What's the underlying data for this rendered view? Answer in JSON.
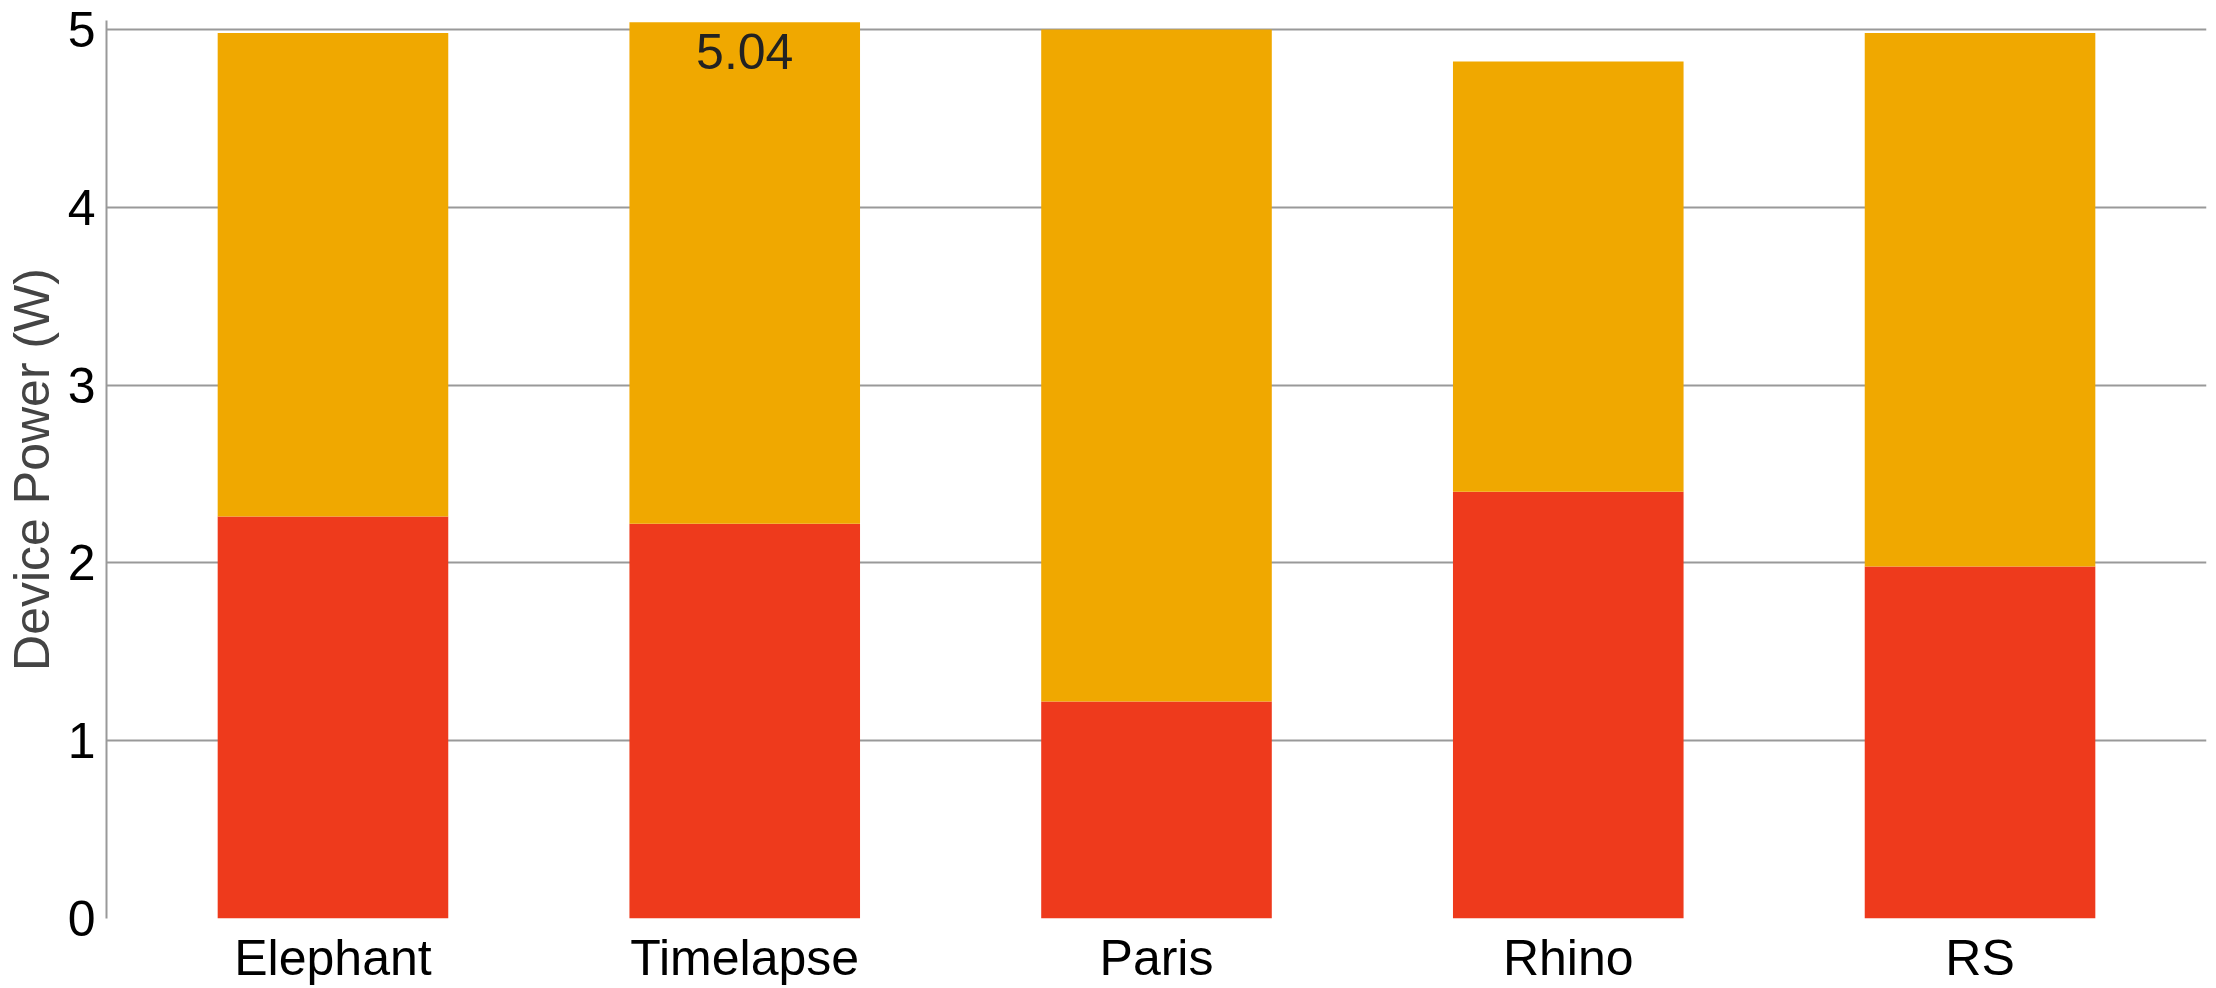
{
  "chart_data": {
    "type": "bar",
    "stacked": true,
    "ylabel": "Device Power (W)",
    "categories": [
      "Elephant",
      "Timelapse",
      "Paris",
      "Rhino",
      "RS"
    ],
    "series": [
      {
        "color": "#ee3a1c",
        "values": [
          2.26,
          2.22,
          1.22,
          2.4,
          1.98
        ]
      },
      {
        "color": "#f0a800",
        "values": [
          2.72,
          2.82,
          3.78,
          2.42,
          3.0
        ]
      }
    ],
    "totals": [
      null,
      "5.04",
      null,
      null,
      null
    ],
    "ylim": [
      0,
      5.05
    ],
    "yticks": [
      0,
      1,
      2,
      3,
      4,
      5
    ],
    "grid": "y"
  }
}
